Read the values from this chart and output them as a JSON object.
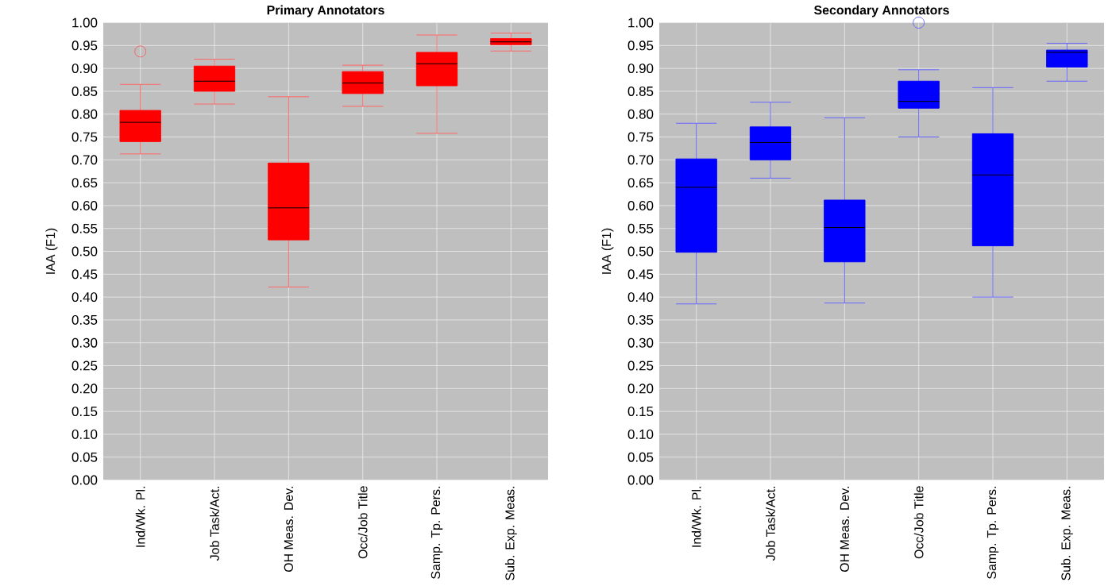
{
  "chart_data": [
    {
      "type": "box",
      "title": "Primary Annotators",
      "ylabel": "IAA (F1)",
      "color": "#ff0000",
      "grid": true,
      "categories": [
        "Ind/Wk. Pl.",
        "Job Task/Act.",
        "OH Meas. Dev.",
        "Occ/Job Title",
        "Samp. Tp. Pers.",
        "Sub. Exp. Meas."
      ],
      "boxes": [
        {
          "low": 0.713,
          "q1": 0.74,
          "median": 0.782,
          "q3": 0.808,
          "high": 0.865,
          "outliers": [
            0.937
          ]
        },
        {
          "low": 0.822,
          "q1": 0.85,
          "median": 0.872,
          "q3": 0.905,
          "high": 0.92
        },
        {
          "low": 0.422,
          "q1": 0.525,
          "median": 0.595,
          "q3": 0.693,
          "high": 0.838
        },
        {
          "low": 0.817,
          "q1": 0.845,
          "median": 0.868,
          "q3": 0.893,
          "high": 0.907
        },
        {
          "low": 0.758,
          "q1": 0.862,
          "median": 0.91,
          "q3": 0.935,
          "high": 0.973
        },
        {
          "low": 0.938,
          "q1": 0.952,
          "median": 0.958,
          "q3": 0.965,
          "high": 0.977
        }
      ],
      "ylim": [
        0,
        1
      ],
      "yticks": [
        {
          "value": 0,
          "label": "0.00"
        },
        {
          "value": 0.05,
          "label": "0.05"
        },
        {
          "value": 0.1,
          "label": "0.10"
        },
        {
          "value": 0.15,
          "label": "0.15"
        },
        {
          "value": 0.2,
          "label": "0.20"
        },
        {
          "value": 0.25,
          "label": "0.25"
        },
        {
          "value": 0.3,
          "label": "0.30"
        },
        {
          "value": 0.35,
          "label": "0.35"
        },
        {
          "value": 0.4,
          "label": "0.40"
        },
        {
          "value": 0.45,
          "label": "0.45"
        },
        {
          "value": 0.5,
          "label": "0.50"
        },
        {
          "value": 0.55,
          "label": "0.55"
        },
        {
          "value": 0.6,
          "label": "0.60"
        },
        {
          "value": 0.65,
          "label": "0.65"
        },
        {
          "value": 0.7,
          "label": "0.70"
        },
        {
          "value": 0.75,
          "label": "0.75"
        },
        {
          "value": 0.8,
          "label": "0.80"
        },
        {
          "value": 0.85,
          "label": "0.85"
        },
        {
          "value": 0.9,
          "label": "0.90"
        },
        {
          "value": 0.95,
          "label": "0.95"
        },
        {
          "value": 1,
          "label": "1.00"
        }
      ]
    },
    {
      "type": "box",
      "title": "Secondary Annotators",
      "ylabel": "IAA (F1)",
      "color": "#0000ff",
      "grid": true,
      "categories": [
        "Ind/Wk. Pl.",
        "Job Task/Act.",
        "OH Meas. Dev.",
        "Occ/Job Title",
        "Samp. Tp. Pers.",
        "Sub. Exp. Meas."
      ],
      "boxes": [
        {
          "low": 0.385,
          "q1": 0.498,
          "median": 0.64,
          "q3": 0.702,
          "high": 0.78
        },
        {
          "low": 0.66,
          "q1": 0.7,
          "median": 0.738,
          "q3": 0.772,
          "high": 0.826
        },
        {
          "low": 0.387,
          "q1": 0.477,
          "median": 0.552,
          "q3": 0.612,
          "high": 0.792
        },
        {
          "low": 0.75,
          "q1": 0.813,
          "median": 0.828,
          "q3": 0.872,
          "high": 0.897,
          "outliers": [
            1.0
          ]
        },
        {
          "low": 0.4,
          "q1": 0.512,
          "median": 0.667,
          "q3": 0.757,
          "high": 0.858
        },
        {
          "low": 0.872,
          "q1": 0.903,
          "median": 0.935,
          "q3": 0.94,
          "high": 0.955
        }
      ],
      "ylim": [
        0,
        1
      ],
      "yticks": [
        {
          "value": 0,
          "label": "0.00"
        },
        {
          "value": 0.05,
          "label": "0.05"
        },
        {
          "value": 0.1,
          "label": "0.10"
        },
        {
          "value": 0.15,
          "label": "0.15"
        },
        {
          "value": 0.2,
          "label": "0.20"
        },
        {
          "value": 0.25,
          "label": "0.25"
        },
        {
          "value": 0.3,
          "label": "0.30"
        },
        {
          "value": 0.35,
          "label": "0.35"
        },
        {
          "value": 0.4,
          "label": "0.40"
        },
        {
          "value": 0.45,
          "label": "0.45"
        },
        {
          "value": 0.5,
          "label": "0.50"
        },
        {
          "value": 0.55,
          "label": "0.55"
        },
        {
          "value": 0.6,
          "label": "0.60"
        },
        {
          "value": 0.65,
          "label": "0.65"
        },
        {
          "value": 0.7,
          "label": "0.70"
        },
        {
          "value": 0.75,
          "label": "0.75"
        },
        {
          "value": 0.8,
          "label": "0.80"
        },
        {
          "value": 0.85,
          "label": "0.85"
        },
        {
          "value": 0.9,
          "label": "0.90"
        },
        {
          "value": 0.95,
          "label": "0.95"
        },
        {
          "value": 1,
          "label": "1.00"
        }
      ]
    }
  ]
}
